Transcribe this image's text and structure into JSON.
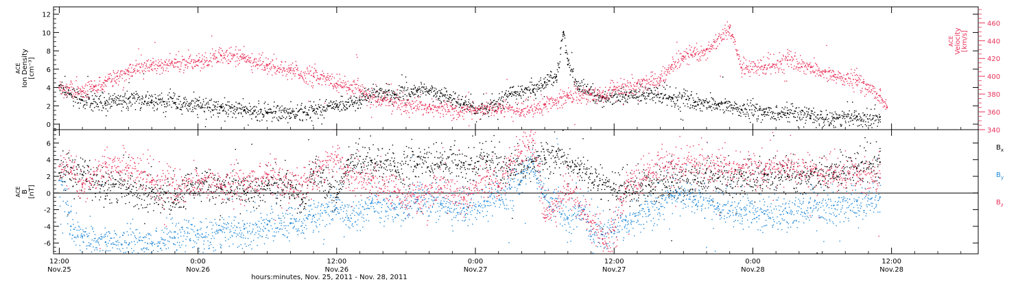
{
  "chart_data": {
    "type": "scatter",
    "xlabel": "hours:minutes, Nov. 25, 2011 - Nov. 28, 2011",
    "x_range_hours": [
      -0.5,
      79.5
    ],
    "x_ticks": [
      {
        "hour": 0,
        "time": "12:00",
        "date": "Nov.25"
      },
      {
        "hour": 12,
        "time": "0:00",
        "date": "Nov.26"
      },
      {
        "hour": 24,
        "time": "12:00",
        "date": "Nov.26"
      },
      {
        "hour": 36,
        "time": "0:00",
        "date": "Nov.27"
      },
      {
        "hour": 48,
        "time": "12:00",
        "date": "Nov.27"
      },
      {
        "hour": 60,
        "time": "0:00",
        "date": "Nov.28"
      },
      {
        "hour": 72,
        "time": "12:00",
        "date": "Nov.28"
      }
    ],
    "panels": [
      {
        "name": "plasma",
        "ylabel_lines": [
          "ACE",
          "Ion Density",
          "[cm⁻³]"
        ],
        "ylim": [
          -0.6,
          12.8
        ],
        "yticks": [
          0,
          2,
          4,
          6,
          8,
          10,
          12
        ],
        "y2label_lines": [
          "ACE",
          "Velocity",
          "[km/s]"
        ],
        "y2lim": [
          340,
          478
        ],
        "y2ticks": [
          340,
          360,
          380,
          400,
          420,
          440,
          460
        ],
        "series": [
          {
            "name": "",
            "axis": "left",
            "color": "#000000",
            "points": [
              [
                0,
                4.2
              ],
              [
                2,
                2.6
              ],
              [
                4,
                2.3
              ],
              [
                6,
                2.8
              ],
              [
                8,
                2.6
              ],
              [
                10,
                2.3
              ],
              [
                12,
                2.1
              ],
              [
                14,
                1.8
              ],
              [
                16,
                1.5
              ],
              [
                18,
                1.3
              ],
              [
                20,
                1.2
              ],
              [
                22,
                1.5
              ],
              [
                24,
                2.0
              ],
              [
                26,
                2.6
              ],
              [
                27.5,
                3.6
              ],
              [
                29,
                3.2
              ],
              [
                31,
                3.7
              ],
              [
                33,
                3.4
              ],
              [
                35,
                2.2
              ],
              [
                36,
                1.5
              ],
              [
                37,
                1.9
              ],
              [
                39,
                3.3
              ],
              [
                41,
                3.8
              ],
              [
                42,
                4.6
              ],
              [
                43,
                5.2
              ],
              [
                43.6,
                10.0
              ],
              [
                44,
                6.5
              ],
              [
                45,
                3.8
              ],
              [
                47,
                2.9
              ],
              [
                49,
                3.2
              ],
              [
                51,
                3.3
              ],
              [
                53,
                2.9
              ],
              [
                55,
                2.4
              ],
              [
                57,
                2.2
              ],
              [
                59,
                1.6
              ],
              [
                61,
                1.3
              ],
              [
                63,
                1.2
              ],
              [
                65,
                0.9
              ],
              [
                67,
                0.7
              ],
              [
                69,
                0.8
              ],
              [
                71,
                0.8
              ]
            ]
          },
          {
            "name": "",
            "axis": "right",
            "color": "#e8325a",
            "points": [
              [
                0,
                387
              ],
              [
                2,
                383
              ],
              [
                3,
                388
              ],
              [
                4,
                395
              ],
              [
                5,
                400
              ],
              [
                6,
                405
              ],
              [
                8,
                413
              ],
              [
                10,
                415
              ],
              [
                12,
                417
              ],
              [
                14,
                423
              ],
              [
                16,
                421
              ],
              [
                18,
                413
              ],
              [
                20,
                407
              ],
              [
                22,
                400
              ],
              [
                24,
                392
              ],
              [
                26,
                385
              ],
              [
                28,
                372
              ],
              [
                30,
                368
              ],
              [
                32,
                366
              ],
              [
                34,
                363
              ],
              [
                36,
                362
              ],
              [
                38,
                364
              ],
              [
                40,
                362
              ],
              [
                42,
                368
              ],
              [
                44,
                378
              ],
              [
                46,
                380
              ],
              [
                47,
                378
              ],
              [
                48,
                385
              ],
              [
                50,
                392
              ],
              [
                52,
                398
              ],
              [
                53,
                413
              ],
              [
                54,
                422
              ],
              [
                55,
                425
              ],
              [
                56,
                430
              ],
              [
                58,
                455
              ],
              [
                59,
                410
              ],
              [
                61,
                410
              ],
              [
                63,
                418
              ],
              [
                65,
                410
              ],
              [
                67,
                400
              ],
              [
                69,
                395
              ],
              [
                71,
                378
              ],
              [
                71.6,
                365
              ]
            ]
          }
        ]
      },
      {
        "name": "magnetic-field",
        "ylabel_lines": [
          "ACE",
          "B",
          "[nT]"
        ],
        "ylim": [
          -7.3,
          7.6
        ],
        "yticks": [
          -6,
          -4,
          -2,
          0,
          2,
          4,
          6
        ],
        "zero_line": true,
        "series": [
          {
            "name": "Bx",
            "color": "#000000",
            "points": [
              [
                0,
                2.4
              ],
              [
                2,
                2.2
              ],
              [
                4,
                1.2
              ],
              [
                6,
                0.6
              ],
              [
                8,
                0.2
              ],
              [
                10,
                -0.8
              ],
              [
                12,
                1.5
              ],
              [
                14,
                0.5
              ],
              [
                16,
                0.2
              ],
              [
                18,
                0.9
              ],
              [
                20,
                1.0
              ],
              [
                21,
                -0.8
              ],
              [
                22,
                2.6
              ],
              [
                24,
                -0.5
              ],
              [
                25,
                4.0
              ],
              [
                27,
                3.9
              ],
              [
                29,
                3.2
              ],
              [
                31,
                3.4
              ],
              [
                33,
                3.7
              ],
              [
                35,
                3.6
              ],
              [
                37,
                3.8
              ],
              [
                39,
                2.8
              ],
              [
                41,
                3.8
              ],
              [
                42,
                4.2
              ],
              [
                43,
                5.0
              ],
              [
                44,
                3.3
              ],
              [
                45,
                2.8
              ],
              [
                47,
                1.0
              ],
              [
                49,
                0.5
              ],
              [
                51,
                1.0
              ],
              [
                53,
                1.3
              ],
              [
                55,
                1.6
              ],
              [
                57,
                1.8
              ],
              [
                59,
                2.0
              ],
              [
                61,
                2.2
              ],
              [
                63,
                2.0
              ],
              [
                65,
                2.3
              ],
              [
                67,
                2.5
              ],
              [
                69,
                3.0
              ],
              [
                71,
                3.7
              ]
            ]
          },
          {
            "name": "By",
            "color": "#1f88d8",
            "points": [
              [
                0,
                1.5
              ],
              [
                1,
                -4.0
              ],
              [
                2,
                -5.2
              ],
              [
                4,
                -5.9
              ],
              [
                6,
                -6.2
              ],
              [
                8,
                -6.1
              ],
              [
                10,
                -5.4
              ],
              [
                12,
                -4.9
              ],
              [
                14,
                -4.5
              ],
              [
                16,
                -4.3
              ],
              [
                18,
                -3.8
              ],
              [
                20,
                -3.6
              ],
              [
                22,
                -2.7
              ],
              [
                24,
                -1.8
              ],
              [
                25,
                -3.0
              ],
              [
                27,
                -1.2
              ],
              [
                29,
                -1.8
              ],
              [
                31,
                -0.8
              ],
              [
                33,
                -1.4
              ],
              [
                35,
                -1.8
              ],
              [
                37,
                -1.0
              ],
              [
                39,
                0.5
              ],
              [
                40,
                1.5
              ],
              [
                41,
                3.5
              ],
              [
                42,
                -0.5
              ],
              [
                44,
                -3.0
              ],
              [
                45,
                -1.5
              ],
              [
                46,
                -5.2
              ],
              [
                47,
                -5.0
              ],
              [
                49,
                -3.3
              ],
              [
                51,
                -2.0
              ],
              [
                53,
                -0.3
              ],
              [
                55,
                -0.8
              ],
              [
                57,
                -1.6
              ],
              [
                59,
                -2.0
              ],
              [
                61,
                -2.5
              ],
              [
                63,
                -2.4
              ],
              [
                65,
                -1.8
              ],
              [
                67,
                -1.5
              ],
              [
                69,
                -1.0
              ],
              [
                71,
                -0.5
              ]
            ]
          },
          {
            "name": "Bz",
            "color": "#e8325a",
            "points": [
              [
                0,
                3.2
              ],
              [
                1,
                2.5
              ],
              [
                2,
                1.0
              ],
              [
                4,
                3.5
              ],
              [
                6,
                3.0
              ],
              [
                8,
                1.5
              ],
              [
                10,
                0.5
              ],
              [
                12,
                1.5
              ],
              [
                14,
                0.8
              ],
              [
                16,
                1.0
              ],
              [
                18,
                2.2
              ],
              [
                20,
                0.5
              ],
              [
                22,
                2.5
              ],
              [
                24,
                4.3
              ],
              [
                25,
                2.5
              ],
              [
                27,
                1.5
              ],
              [
                29,
                0.2
              ],
              [
                31,
                -0.5
              ],
              [
                33,
                0.6
              ],
              [
                35,
                -0.5
              ],
              [
                37,
                2.0
              ],
              [
                38,
                0.8
              ],
              [
                39,
                4.0
              ],
              [
                40,
                5.0
              ],
              [
                41,
                6.3
              ],
              [
                42,
                -3.0
              ],
              [
                43,
                -1.0
              ],
              [
                44,
                0.8
              ],
              [
                46,
                -3.5
              ],
              [
                47,
                -5.5
              ],
              [
                48,
                -4.5
              ],
              [
                49,
                0.5
              ],
              [
                51,
                2.5
              ],
              [
                53,
                3.8
              ],
              [
                55,
                3.2
              ],
              [
                57,
                3.3
              ],
              [
                59,
                3.0
              ],
              [
                61,
                2.9
              ],
              [
                63,
                3.0
              ],
              [
                65,
                2.6
              ],
              [
                67,
                2.4
              ],
              [
                69,
                2.2
              ],
              [
                71,
                1.8
              ]
            ]
          }
        ]
      }
    ]
  }
}
